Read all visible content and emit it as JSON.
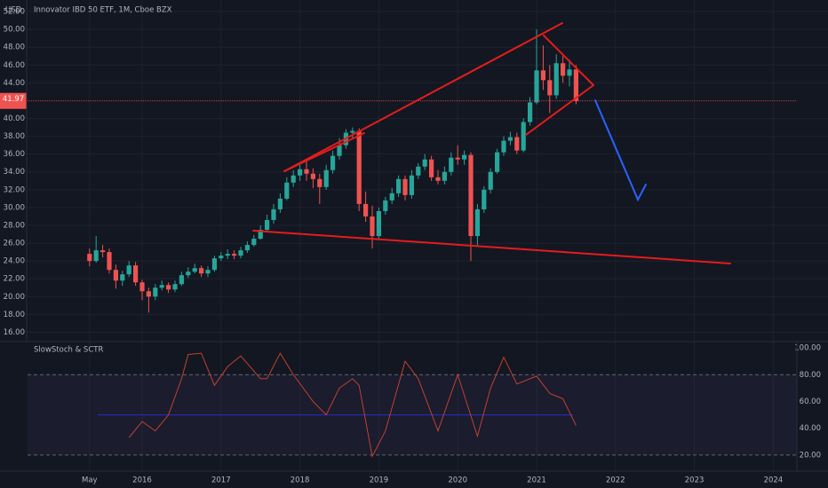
{
  "chart_data": [
    {
      "type": "candlestick",
      "title": "Innovator IBD 50 ETF, 1M, Cboe BZX",
      "y_label": "USD",
      "up_color": "#26a69a",
      "down_color": "#ef5350",
      "grid": true,
      "x": [
        "2015-05",
        "2015-06",
        "2015-07",
        "2015-08",
        "2015-09",
        "2015-10",
        "2015-11",
        "2015-12",
        "2016-01",
        "2016-02",
        "2016-03",
        "2016-04",
        "2016-05",
        "2016-06",
        "2016-07",
        "2016-08",
        "2016-09",
        "2016-10",
        "2016-11",
        "2016-12",
        "2017-01",
        "2017-02",
        "2017-03",
        "2017-04",
        "2017-05",
        "2017-06",
        "2017-07",
        "2017-08",
        "2017-09",
        "2017-10",
        "2017-11",
        "2017-12",
        "2018-01",
        "2018-02",
        "2018-03",
        "2018-04",
        "2018-05",
        "2018-06",
        "2018-07",
        "2018-08",
        "2018-09",
        "2018-10",
        "2018-11",
        "2018-12",
        "2019-01",
        "2019-02",
        "2019-03",
        "2019-04",
        "2019-05",
        "2019-06",
        "2019-07",
        "2019-08",
        "2019-09",
        "2019-10",
        "2019-11",
        "2019-12",
        "2020-01",
        "2020-02",
        "2020-03",
        "2020-04",
        "2020-05",
        "2020-06",
        "2020-07",
        "2020-08",
        "2020-09",
        "2020-10",
        "2020-11",
        "2020-12",
        "2021-01",
        "2021-02",
        "2021-03",
        "2021-04",
        "2021-05",
        "2021-06",
        "2021-07"
      ],
      "open": [
        24.8,
        24.0,
        25.2,
        25.0,
        23.0,
        21.8,
        22.5,
        23.5,
        21.6,
        20.6,
        20.0,
        21.0,
        21.3,
        20.8,
        21.4,
        22.4,
        22.8,
        23.2,
        22.6,
        23.0,
        24.3,
        24.6,
        24.8,
        24.6,
        25.2,
        25.8,
        26.5,
        27.5,
        28.6,
        29.8,
        31.0,
        32.8,
        33.6,
        34.3,
        33.8,
        33.2,
        32.3,
        34.2,
        35.8,
        37.0,
        38.4,
        38.6,
        30.4,
        29.0,
        26.8,
        29.6,
        30.8,
        31.6,
        33.2,
        31.4,
        33.6,
        34.6,
        35.4,
        33.4,
        33.0,
        34.0,
        35.6,
        35.4,
        35.9,
        26.8,
        29.8,
        32.0,
        34.0,
        36.2,
        37.5,
        37.9,
        36.4,
        39.6,
        41.8,
        45.4,
        44.3,
        42.6,
        46.2,
        44.8,
        45.5
      ],
      "high": [
        25.4,
        26.8,
        25.8,
        25.4,
        23.6,
        22.9,
        24.0,
        23.9,
        21.9,
        21.0,
        21.4,
        21.8,
        21.6,
        21.8,
        22.8,
        23.3,
        23.7,
        23.5,
        23.4,
        24.6,
        25.0,
        25.3,
        25.2,
        25.6,
        26.2,
        26.9,
        28.0,
        29.2,
        30.4,
        31.6,
        33.4,
        34.2,
        34.8,
        35.2,
        34.4,
        33.8,
        34.8,
        36.4,
        37.8,
        38.8,
        39.0,
        38.9,
        31.8,
        30.2,
        30.0,
        31.2,
        32.2,
        33.6,
        33.6,
        34.2,
        35.0,
        36.0,
        35.8,
        34.2,
        34.6,
        36.2,
        37.0,
        36.4,
        36.2,
        30.4,
        32.4,
        34.4,
        36.6,
        38.0,
        38.5,
        38.4,
        40.0,
        42.4,
        50.0,
        48.2,
        46.0,
        47.2,
        47.0,
        46.6,
        46.0
      ],
      "low": [
        23.4,
        23.8,
        24.4,
        22.6,
        20.9,
        21.2,
        22.2,
        21.2,
        19.6,
        18.2,
        19.6,
        20.7,
        20.4,
        20.5,
        21.2,
        22.1,
        22.6,
        22.2,
        22.2,
        22.8,
        24.0,
        24.2,
        24.2,
        24.3,
        24.9,
        25.6,
        26.4,
        27.2,
        28.2,
        29.4,
        30.8,
        32.3,
        33.0,
        33.0,
        32.2,
        30.4,
        32.0,
        33.8,
        35.4,
        36.6,
        37.8,
        29.6,
        28.4,
        25.4,
        26.4,
        29.2,
        30.4,
        31.2,
        30.8,
        31.0,
        33.2,
        34.2,
        33.0,
        32.6,
        32.6,
        33.6,
        34.8,
        34.8,
        24.0,
        25.6,
        29.4,
        31.6,
        33.8,
        35.8,
        37.0,
        36.0,
        36.2,
        39.2,
        41.6,
        43.2,
        40.6,
        42.2,
        44.0,
        43.6,
        41.6
      ],
      "close": [
        24.0,
        25.2,
        25.0,
        23.0,
        21.8,
        22.5,
        23.5,
        21.6,
        20.6,
        20.0,
        21.0,
        21.3,
        20.8,
        21.4,
        22.4,
        22.8,
        23.2,
        22.6,
        23.0,
        24.3,
        24.6,
        24.8,
        24.6,
        25.2,
        25.8,
        26.5,
        27.5,
        28.6,
        29.8,
        31.0,
        32.8,
        33.6,
        34.3,
        33.8,
        33.2,
        32.3,
        34.2,
        35.8,
        37.0,
        38.4,
        38.6,
        30.4,
        29.0,
        26.8,
        29.6,
        30.8,
        31.6,
        33.2,
        31.4,
        33.6,
        34.6,
        35.4,
        33.4,
        33.0,
        34.0,
        35.6,
        35.4,
        35.9,
        26.8,
        29.8,
        32.0,
        34.0,
        36.2,
        37.5,
        37.9,
        36.4,
        39.6,
        41.8,
        45.4,
        44.3,
        42.6,
        46.2,
        44.8,
        45.5,
        41.97
      ],
      "ylim": [
        14.95,
        53.0
      ],
      "yticks": [
        {
          "value": 16,
          "label": "16.00"
        },
        {
          "value": 18,
          "label": "18.00"
        },
        {
          "value": 20,
          "label": "20.00"
        },
        {
          "value": 22,
          "label": "22.00"
        },
        {
          "value": 24,
          "label": "24.00"
        },
        {
          "value": 26,
          "label": "26.00"
        },
        {
          "value": 28,
          "label": "28.00"
        },
        {
          "value": 30,
          "label": "30.00"
        },
        {
          "value": 32,
          "label": "32.00"
        },
        {
          "value": 34,
          "label": "34.00"
        },
        {
          "value": 36,
          "label": "36.00"
        },
        {
          "value": 38,
          "label": "38.00"
        },
        {
          "value": 40,
          "label": "40.00"
        },
        {
          "value": 44,
          "label": "44.00"
        },
        {
          "value": 46,
          "label": "46.00"
        },
        {
          "value": 48,
          "label": "48.00"
        },
        {
          "value": 50,
          "label": "50.00"
        },
        {
          "value": 52,
          "label": "52.00"
        }
      ],
      "xticks": [
        {
          "value": "2015-05",
          "label": "May"
        },
        {
          "value": "2016-01",
          "label": "2016"
        },
        {
          "value": "2017-01",
          "label": "2017"
        },
        {
          "value": "2018-01",
          "label": "2018"
        },
        {
          "value": "2019-01",
          "label": "2019"
        },
        {
          "value": "2020-01",
          "label": "2020"
        },
        {
          "value": "2021-01",
          "label": "2021"
        },
        {
          "value": "2022-01",
          "label": "2022"
        },
        {
          "value": "2023-01",
          "label": "2023"
        },
        {
          "value": "2024-01",
          "label": "2024"
        }
      ]
    },
    {
      "type": "line",
      "title": "SlowStoch & SCTR",
      "color": "#d2452f",
      "hline": 50,
      "hline_color": "#2a2ad0",
      "bands": [
        80,
        20
      ],
      "x": [
        "2015-11",
        "2016-01",
        "2016-03",
        "2016-05",
        "2016-07",
        "2016-08",
        "2016-10",
        "2016-12",
        "2017-02",
        "2017-04",
        "2017-07",
        "2017-08",
        "2017-10",
        "2017-12",
        "2018-03",
        "2018-05",
        "2018-07",
        "2018-09",
        "2018-10",
        "2018-12",
        "2019-02",
        "2019-05",
        "2019-07",
        "2019-10",
        "2020-01",
        "2020-04",
        "2020-06",
        "2020-08",
        "2020-10",
        "2021-01",
        "2021-03",
        "2021-05",
        "2021-07"
      ],
      "values": [
        33,
        45,
        38,
        50,
        77,
        95,
        96,
        72,
        86,
        94,
        77,
        77,
        96,
        80,
        60,
        50,
        70,
        77,
        72,
        19,
        38,
        90,
        77,
        38,
        80,
        34,
        70,
        93,
        73,
        79,
        66,
        62,
        42
      ],
      "ylim": [
        8,
        104
      ],
      "yticks": [
        {
          "value": 20,
          "label": "20.00"
        },
        {
          "value": 40,
          "label": "40.00"
        },
        {
          "value": 60,
          "label": "60.00"
        },
        {
          "value": 80,
          "label": "80.00"
        },
        {
          "value": 100,
          "label": "100.00"
        }
      ]
    }
  ]
}
